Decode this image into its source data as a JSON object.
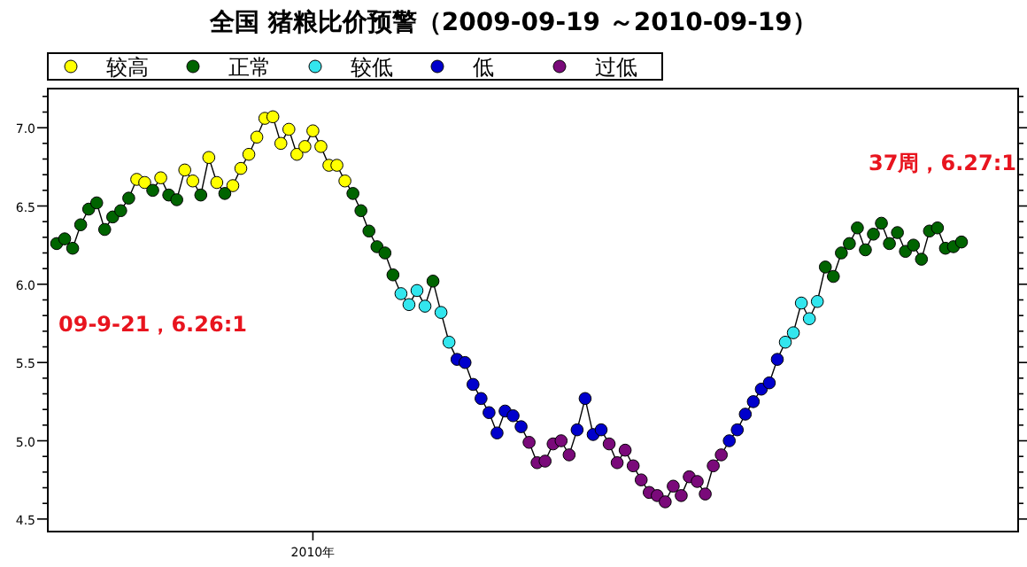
{
  "chart_data": {
    "type": "line",
    "title": "全国 猪粮比价预警（2009-09-19 ～2010-09-19）",
    "categories": [
      null,
      null,
      null,
      null,
      null,
      null,
      null,
      null,
      null,
      null,
      null,
      null,
      null,
      null,
      null,
      null,
      null,
      null,
      null,
      null,
      null,
      null,
      null,
      null,
      null,
      null,
      null,
      null,
      null,
      null,
      null,
      null,
      "2010年",
      null,
      null,
      null,
      null,
      null,
      null,
      null,
      null,
      null,
      null,
      null,
      null,
      null,
      null,
      null,
      null,
      null,
      null,
      null,
      null,
      null,
      null,
      null,
      null,
      null,
      null,
      null,
      null,
      null,
      null,
      null,
      null,
      null,
      null,
      null,
      null,
      null,
      null,
      null,
      null,
      null,
      null,
      null,
      null,
      null,
      null,
      null,
      null,
      null,
      null,
      null,
      null,
      null,
      null,
      null,
      null,
      null,
      null,
      null,
      null,
      null,
      null,
      null,
      null,
      null,
      null,
      null,
      null,
      null,
      null,
      null,
      null,
      null,
      null,
      null,
      null,
      null,
      null,
      null,
      null,
      null
    ],
    "ylim": [
      4.42,
      7.25
    ],
    "yticks": [
      {
        "value": 4.5,
        "label": "4.5"
      },
      {
        "value": 4.6,
        "label": null
      },
      {
        "value": 4.7,
        "label": null
      },
      {
        "value": 4.8,
        "label": null
      },
      {
        "value": 4.9,
        "label": null
      },
      {
        "value": 5,
        "label": "5.0"
      },
      {
        "value": 5.1,
        "label": null
      },
      {
        "value": 5.2,
        "label": null
      },
      {
        "value": 5.3,
        "label": null
      },
      {
        "value": 5.4,
        "label": null
      },
      {
        "value": 5.5,
        "label": "5.5"
      },
      {
        "value": 5.6,
        "label": null
      },
      {
        "value": 5.7,
        "label": null
      },
      {
        "value": 5.8,
        "label": null
      },
      {
        "value": 5.9,
        "label": null
      },
      {
        "value": 6,
        "label": "6.0"
      },
      {
        "value": 6.1,
        "label": null
      },
      {
        "value": 6.2,
        "label": null
      },
      {
        "value": 6.3,
        "label": null
      },
      {
        "value": 6.4,
        "label": null
      },
      {
        "value": 6.5,
        "label": "6.5"
      },
      {
        "value": 6.6,
        "label": null
      },
      {
        "value": 6.7,
        "label": null
      },
      {
        "value": 6.8,
        "label": null
      },
      {
        "value": 6.9,
        "label": null
      },
      {
        "value": 7,
        "label": "7.0"
      },
      {
        "value": 7.1,
        "label": null
      },
      {
        "value": 7.2,
        "label": null
      }
    ],
    "marker": "circle",
    "legend": "top",
    "annotations": [
      "09-9-21，6.26:1",
      "37周，6.27:1"
    ],
    "series": [
      {
        "color": "#000000",
        "marker": "none",
        "values": [
          6.26,
          6.29,
          6.23,
          6.38,
          6.48,
          6.52,
          6.35,
          6.43,
          6.47,
          6.55,
          6.67,
          6.65,
          6.6,
          6.68,
          6.57,
          6.54,
          6.73,
          6.66,
          6.57,
          6.81,
          6.65,
          6.58,
          6.63,
          6.74,
          6.83,
          6.94,
          7.06,
          7.07,
          6.9,
          6.99,
          6.83,
          6.88,
          6.98,
          6.88,
          6.76,
          6.76,
          6.66,
          6.58,
          6.47,
          6.34,
          6.24,
          6.2,
          6.06,
          5.94,
          5.87,
          5.96,
          5.86,
          6.02,
          5.82,
          5.63,
          5.52,
          5.5,
          5.36,
          5.27,
          5.18,
          5.05,
          5.19,
          5.16,
          5.09,
          4.99,
          4.86,
          4.87,
          4.98,
          5.0,
          4.91,
          5.07,
          5.27,
          5.04,
          5.07,
          4.98,
          4.86,
          4.94,
          4.84,
          4.75,
          4.67,
          4.65,
          4.61,
          4.71,
          4.65,
          4.77,
          4.74,
          4.66,
          4.84,
          4.91,
          5.0,
          5.07,
          5.17,
          5.25,
          5.33,
          5.37,
          5.52,
          5.63,
          5.69,
          5.88,
          5.78,
          5.89,
          6.11,
          6.05,
          6.2,
          6.26,
          6.36,
          6.22,
          6.32,
          6.39,
          6.26,
          6.33,
          6.21,
          6.25,
          6.16,
          6.34,
          6.36,
          6.23,
          6.24,
          6.27
        ]
      },
      {
        "type": "scatter",
        "name": "较高",
        "color": "#ffff00",
        "values": [
          null,
          null,
          null,
          null,
          null,
          null,
          null,
          null,
          null,
          null,
          6.67,
          6.65,
          null,
          6.68,
          null,
          null,
          6.73,
          6.66,
          null,
          6.81,
          6.65,
          null,
          6.63,
          6.74,
          6.83,
          6.94,
          7.06,
          7.07,
          6.9,
          6.99,
          6.83,
          6.88,
          6.98,
          6.88,
          6.76,
          6.76,
          6.66,
          null,
          null,
          null,
          null,
          null,
          null,
          null,
          null,
          null,
          null,
          null,
          null,
          null,
          null,
          null,
          null,
          null,
          null,
          null,
          null,
          null,
          null,
          null,
          null,
          null,
          null,
          null,
          null,
          null,
          null,
          null,
          null,
          null,
          null,
          null,
          null,
          null,
          null,
          null,
          null,
          null,
          null,
          null,
          null,
          null,
          null,
          null,
          null,
          null,
          null,
          null,
          null,
          null,
          null,
          null,
          null,
          null,
          null,
          null,
          null,
          null,
          null,
          null,
          null,
          null,
          null,
          null,
          null,
          null,
          null,
          null,
          null,
          null,
          null,
          null,
          null,
          null
        ]
      },
      {
        "type": "scatter",
        "name": "正常",
        "color": "#006400",
        "values": [
          6.26,
          6.29,
          6.23,
          6.38,
          6.48,
          6.52,
          6.35,
          6.43,
          6.47,
          6.55,
          null,
          null,
          6.6,
          null,
          6.57,
          6.54,
          null,
          null,
          6.57,
          null,
          null,
          6.58,
          null,
          null,
          null,
          null,
          null,
          null,
          null,
          null,
          null,
          null,
          null,
          null,
          null,
          null,
          null,
          6.58,
          6.47,
          6.34,
          6.24,
          6.2,
          6.06,
          null,
          null,
          null,
          null,
          6.02,
          null,
          null,
          null,
          null,
          null,
          null,
          null,
          null,
          null,
          null,
          null,
          null,
          null,
          null,
          null,
          null,
          null,
          null,
          null,
          null,
          null,
          null,
          null,
          null,
          null,
          null,
          null,
          null,
          null,
          null,
          null,
          null,
          null,
          null,
          null,
          null,
          null,
          null,
          null,
          null,
          null,
          null,
          null,
          null,
          null,
          null,
          null,
          null,
          6.11,
          6.05,
          6.2,
          6.26,
          6.36,
          6.22,
          6.32,
          6.39,
          6.26,
          6.33,
          6.21,
          6.25,
          6.16,
          6.34,
          6.36,
          6.23,
          6.24,
          6.27
        ]
      },
      {
        "type": "scatter",
        "name": "较低",
        "color": "#33e6ee",
        "values": [
          null,
          null,
          null,
          null,
          null,
          null,
          null,
          null,
          null,
          null,
          null,
          null,
          null,
          null,
          null,
          null,
          null,
          null,
          null,
          null,
          null,
          null,
          null,
          null,
          null,
          null,
          null,
          null,
          null,
          null,
          null,
          null,
          null,
          null,
          null,
          null,
          null,
          null,
          null,
          null,
          null,
          null,
          null,
          5.94,
          5.87,
          5.96,
          5.86,
          null,
          5.82,
          5.63,
          null,
          null,
          null,
          null,
          null,
          null,
          null,
          null,
          null,
          null,
          null,
          null,
          null,
          null,
          null,
          null,
          null,
          null,
          null,
          null,
          null,
          null,
          null,
          null,
          null,
          null,
          null,
          null,
          null,
          null,
          null,
          null,
          null,
          null,
          null,
          null,
          null,
          null,
          null,
          null,
          null,
          5.63,
          5.69,
          5.88,
          5.78,
          5.89,
          null,
          null,
          null,
          null,
          null,
          null,
          null,
          null,
          null,
          null,
          null,
          null,
          null,
          null,
          null,
          null,
          null,
          null
        ]
      },
      {
        "type": "scatter",
        "name": "低",
        "color": "#0000cc",
        "values": [
          null,
          null,
          null,
          null,
          null,
          null,
          null,
          null,
          null,
          null,
          null,
          null,
          null,
          null,
          null,
          null,
          null,
          null,
          null,
          null,
          null,
          null,
          null,
          null,
          null,
          null,
          null,
          null,
          null,
          null,
          null,
          null,
          null,
          null,
          null,
          null,
          null,
          null,
          null,
          null,
          null,
          null,
          null,
          null,
          null,
          null,
          null,
          null,
          null,
          null,
          5.52,
          5.5,
          5.36,
          5.27,
          5.18,
          5.05,
          5.19,
          5.16,
          5.09,
          null,
          null,
          null,
          null,
          null,
          null,
          5.07,
          5.27,
          5.04,
          5.07,
          null,
          null,
          null,
          null,
          null,
          null,
          null,
          null,
          null,
          null,
          null,
          null,
          null,
          null,
          null,
          5.0,
          5.07,
          5.17,
          5.25,
          5.33,
          5.37,
          5.52,
          null,
          null,
          null,
          null,
          null,
          null,
          null,
          null,
          null,
          null,
          null,
          null,
          null,
          null,
          null,
          null,
          null,
          null,
          null,
          null,
          null,
          null,
          null
        ]
      },
      {
        "type": "scatter",
        "name": "过低",
        "color": "#7a0a7a",
        "values": [
          null,
          null,
          null,
          null,
          null,
          null,
          null,
          null,
          null,
          null,
          null,
          null,
          null,
          null,
          null,
          null,
          null,
          null,
          null,
          null,
          null,
          null,
          null,
          null,
          null,
          null,
          null,
          null,
          null,
          null,
          null,
          null,
          null,
          null,
          null,
          null,
          null,
          null,
          null,
          null,
          null,
          null,
          null,
          null,
          null,
          null,
          null,
          null,
          null,
          null,
          null,
          null,
          null,
          null,
          null,
          null,
          null,
          null,
          null,
          4.99,
          4.86,
          4.87,
          4.98,
          5.0,
          4.91,
          null,
          null,
          null,
          null,
          4.98,
          4.86,
          4.94,
          4.84,
          4.75,
          4.67,
          4.65,
          4.61,
          4.71,
          4.65,
          4.77,
          4.74,
          4.66,
          4.84,
          4.91,
          null,
          null,
          null,
          null,
          null,
          null,
          null,
          null,
          null,
          null,
          null,
          null,
          null,
          null,
          null,
          null,
          null,
          null,
          null,
          null,
          null,
          null,
          null,
          null,
          null,
          null,
          null,
          null,
          null,
          null
        ]
      }
    ]
  }
}
